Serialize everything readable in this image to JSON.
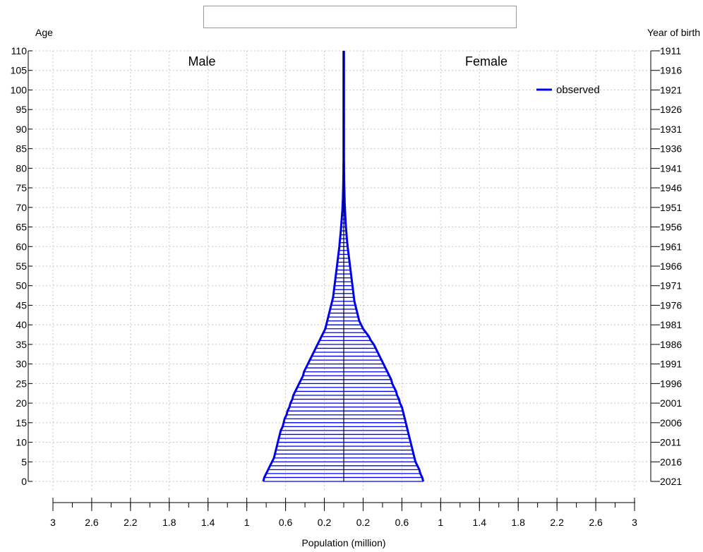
{
  "chart_data": {
    "type": "population-pyramid",
    "title": "",
    "left_axis_title": "Age",
    "right_axis_title": "Year of birth",
    "xlabel": "Population (million)",
    "left_panel_label": "Male",
    "right_panel_label": "Female",
    "legend": {
      "entries": [
        "observed"
      ],
      "placement": "top-right"
    },
    "grid": true,
    "age_range": [
      0,
      110
    ],
    "x_range_each_side": [
      0,
      3
    ],
    "age_ticks": [
      "0",
      "5",
      "10",
      "15",
      "20",
      "25",
      "30",
      "35",
      "40",
      "45",
      "50",
      "55",
      "60",
      "65",
      "70",
      "75",
      "80",
      "85",
      "90",
      "95",
      "100",
      "105",
      "110"
    ],
    "year_ticks": [
      "2021",
      "2016",
      "2011",
      "2006",
      "2001",
      "1996",
      "1991",
      "1986",
      "1981",
      "1976",
      "1971",
      "1966",
      "1961",
      "1956",
      "1951",
      "1946",
      "1941",
      "1936",
      "1931",
      "1926",
      "1921",
      "1916",
      "1911"
    ],
    "x_tick_labels": [
      "3",
      "2.6",
      "2.2",
      "1.8",
      "1.4",
      "1",
      "0.6",
      "0.2",
      "0.2",
      "0.6",
      "1",
      "1.4",
      "1.8",
      "2.2",
      "2.6",
      "3"
    ],
    "colors": {
      "observed": "#0000ee",
      "center_line": "#000000",
      "grid": "#c8c8c8"
    },
    "series": [
      {
        "name": "observed",
        "ages": [
          0,
          1,
          2,
          3,
          4,
          5,
          6,
          7,
          8,
          9,
          10,
          11,
          12,
          13,
          14,
          15,
          16,
          17,
          18,
          19,
          20,
          21,
          22,
          23,
          24,
          25,
          26,
          27,
          28,
          29,
          30,
          31,
          32,
          33,
          34,
          35,
          36,
          37,
          38,
          39,
          40,
          41,
          42,
          43,
          44,
          45,
          46,
          47,
          48,
          49,
          50,
          51,
          52,
          53,
          54,
          55,
          56,
          57,
          58,
          59,
          60,
          61,
          62,
          63,
          64,
          65,
          66,
          67,
          68,
          69,
          70,
          71,
          72,
          73,
          74,
          75,
          76,
          77,
          78,
          79,
          80,
          81,
          82,
          83,
          84,
          85,
          86,
          87,
          88,
          89,
          90,
          91,
          92,
          93,
          94,
          95,
          96,
          97,
          98,
          99,
          100,
          101,
          102,
          103,
          104,
          105,
          106,
          107,
          108,
          109,
          110
        ],
        "male": [
          0.83,
          0.82,
          0.8,
          0.78,
          0.76,
          0.74,
          0.72,
          0.71,
          0.7,
          0.69,
          0.68,
          0.67,
          0.66,
          0.65,
          0.63,
          0.62,
          0.61,
          0.59,
          0.58,
          0.56,
          0.55,
          0.53,
          0.52,
          0.5,
          0.48,
          0.46,
          0.44,
          0.42,
          0.41,
          0.39,
          0.37,
          0.35,
          0.33,
          0.31,
          0.29,
          0.27,
          0.25,
          0.23,
          0.21,
          0.19,
          0.18,
          0.17,
          0.16,
          0.15,
          0.14,
          0.13,
          0.12,
          0.11,
          0.105,
          0.1,
          0.095,
          0.09,
          0.085,
          0.08,
          0.075,
          0.07,
          0.065,
          0.06,
          0.055,
          0.05,
          0.045,
          0.042,
          0.038,
          0.034,
          0.03,
          0.027,
          0.024,
          0.021,
          0.018,
          0.015,
          0.013,
          0.011,
          0.009,
          0.008,
          0.007,
          0.006,
          0.005,
          0.004,
          0.004,
          0.003,
          0.003,
          0.003,
          0.002,
          0.002,
          0.002,
          0.002,
          0.002,
          0.002,
          0.002,
          0.002,
          0.002,
          0.002,
          0.002,
          0.002,
          0.002,
          0.002,
          0.002,
          0.002,
          0.002,
          0.002,
          0.002,
          0.002,
          0.002,
          0.002,
          0.002,
          0.002,
          0.002,
          0.002,
          0.002,
          0.002,
          0.002
        ],
        "female": [
          0.82,
          0.81,
          0.79,
          0.78,
          0.76,
          0.74,
          0.73,
          0.72,
          0.71,
          0.7,
          0.69,
          0.68,
          0.67,
          0.66,
          0.65,
          0.64,
          0.63,
          0.62,
          0.61,
          0.6,
          0.58,
          0.57,
          0.55,
          0.54,
          0.52,
          0.5,
          0.49,
          0.47,
          0.45,
          0.43,
          0.41,
          0.39,
          0.37,
          0.35,
          0.33,
          0.31,
          0.28,
          0.26,
          0.23,
          0.2,
          0.18,
          0.16,
          0.15,
          0.14,
          0.13,
          0.12,
          0.11,
          0.105,
          0.1,
          0.095,
          0.09,
          0.085,
          0.08,
          0.075,
          0.07,
          0.065,
          0.06,
          0.055,
          0.05,
          0.045,
          0.04,
          0.036,
          0.032,
          0.029,
          0.026,
          0.023,
          0.02,
          0.018,
          0.016,
          0.014,
          0.012,
          0.01,
          0.009,
          0.008,
          0.007,
          0.006,
          0.005,
          0.004,
          0.004,
          0.003,
          0.003,
          0.003,
          0.002,
          0.002,
          0.002,
          0.002,
          0.002,
          0.002,
          0.002,
          0.002,
          0.002,
          0.002,
          0.002,
          0.002,
          0.002,
          0.002,
          0.002,
          0.002,
          0.002,
          0.002,
          0.002,
          0.002,
          0.002,
          0.002,
          0.002,
          0.002,
          0.002,
          0.002,
          0.002,
          0.002,
          0.002
        ]
      }
    ]
  }
}
